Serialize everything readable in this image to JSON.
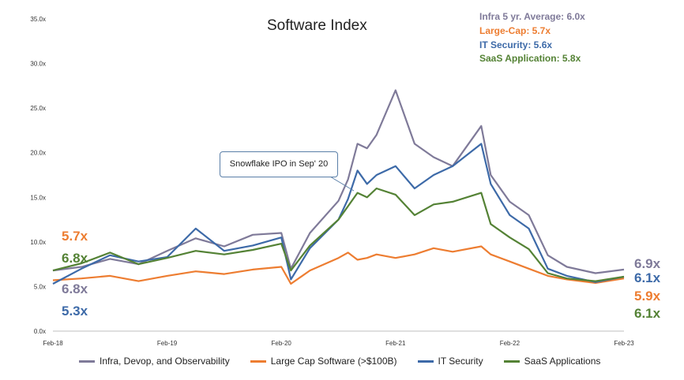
{
  "chart_data": {
    "type": "line",
    "title": "Software Index",
    "ylim": [
      0,
      35
    ],
    "y_ticks": [
      "0.0x",
      "5.0x",
      "10.0x",
      "15.0x",
      "20.0x",
      "25.0x",
      "30.0x",
      "35.0x"
    ],
    "x_ticks": [
      "Feb-18",
      "Feb-19",
      "Feb-20",
      "Feb-21",
      "Feb-22",
      "Feb-23"
    ],
    "x": [
      "Feb-18",
      "May-18",
      "Aug-18",
      "Nov-18",
      "Feb-19",
      "May-19",
      "Aug-19",
      "Nov-19",
      "Feb-20",
      "Mar-20",
      "May-20",
      "Aug-20",
      "Sep-20",
      "Oct-20",
      "Nov-20",
      "Dec-20",
      "Feb-21",
      "Apr-21",
      "Jun-21",
      "Aug-21",
      "Nov-21",
      "Dec-21",
      "Feb-22",
      "Apr-22",
      "Jun-22",
      "Aug-22",
      "Nov-22",
      "Feb-23"
    ],
    "series": [
      {
        "name": "Infra, Devop, and Observability",
        "color": "#7f7a99",
        "values": [
          6.8,
          7.2,
          8.1,
          7.5,
          9.0,
          10.4,
          9.5,
          10.8,
          11.0,
          7.0,
          11.0,
          14.6,
          17.0,
          21.0,
          20.5,
          22.0,
          27.0,
          21.0,
          19.5,
          18.5,
          23.0,
          17.5,
          14.5,
          13.0,
          8.5,
          7.2,
          6.5,
          6.9
        ]
      },
      {
        "name": "Large Cap Software (>$100B)",
        "color": "#ed7d31",
        "values": [
          5.7,
          5.9,
          6.2,
          5.6,
          6.2,
          6.7,
          6.4,
          6.9,
          7.2,
          5.3,
          6.8,
          8.2,
          8.8,
          8.0,
          8.2,
          8.6,
          8.2,
          8.6,
          9.3,
          8.9,
          9.5,
          8.6,
          7.8,
          7.0,
          6.2,
          5.8,
          5.4,
          5.9
        ]
      },
      {
        "name": "IT Security",
        "color": "#3d6aa8",
        "values": [
          5.3,
          7.0,
          8.5,
          7.8,
          8.3,
          11.5,
          9.0,
          9.6,
          10.5,
          5.8,
          9.3,
          12.5,
          14.8,
          18.0,
          16.5,
          17.5,
          18.5,
          16.0,
          17.5,
          18.5,
          21.0,
          16.5,
          13.0,
          11.5,
          7.0,
          6.2,
          5.5,
          6.1
        ]
      },
      {
        "name": "SaaS Applications",
        "color": "#548235",
        "values": [
          6.8,
          7.6,
          8.8,
          7.5,
          8.2,
          9.0,
          8.6,
          9.1,
          9.8,
          6.8,
          9.6,
          12.5,
          14.0,
          15.5,
          15.0,
          16.0,
          15.3,
          13.0,
          14.2,
          14.5,
          15.5,
          12.0,
          10.5,
          9.2,
          6.5,
          5.9,
          5.6,
          6.1
        ]
      }
    ]
  },
  "averages": {
    "infra": "Infra 5 yr. Average: 6.0x",
    "large_cap": "Large-Cap: 5.7x",
    "it_security": "IT Security: 5.6x",
    "saas": "SaaS Application: 5.8x"
  },
  "callout": "Snowflake IPO in Sep' 20",
  "start_labels": {
    "large_cap": "5.7x",
    "saas": "6.8x",
    "infra": "6.8x",
    "it_security": "5.3x"
  },
  "end_labels": {
    "infra": "6.9x",
    "it_security": "6.1x",
    "large_cap": "5.9x",
    "saas": "6.1x"
  },
  "colors": {
    "infra": "#7f7a99",
    "large_cap": "#ed7d31",
    "it_security": "#3d6aa8",
    "saas": "#548235"
  }
}
